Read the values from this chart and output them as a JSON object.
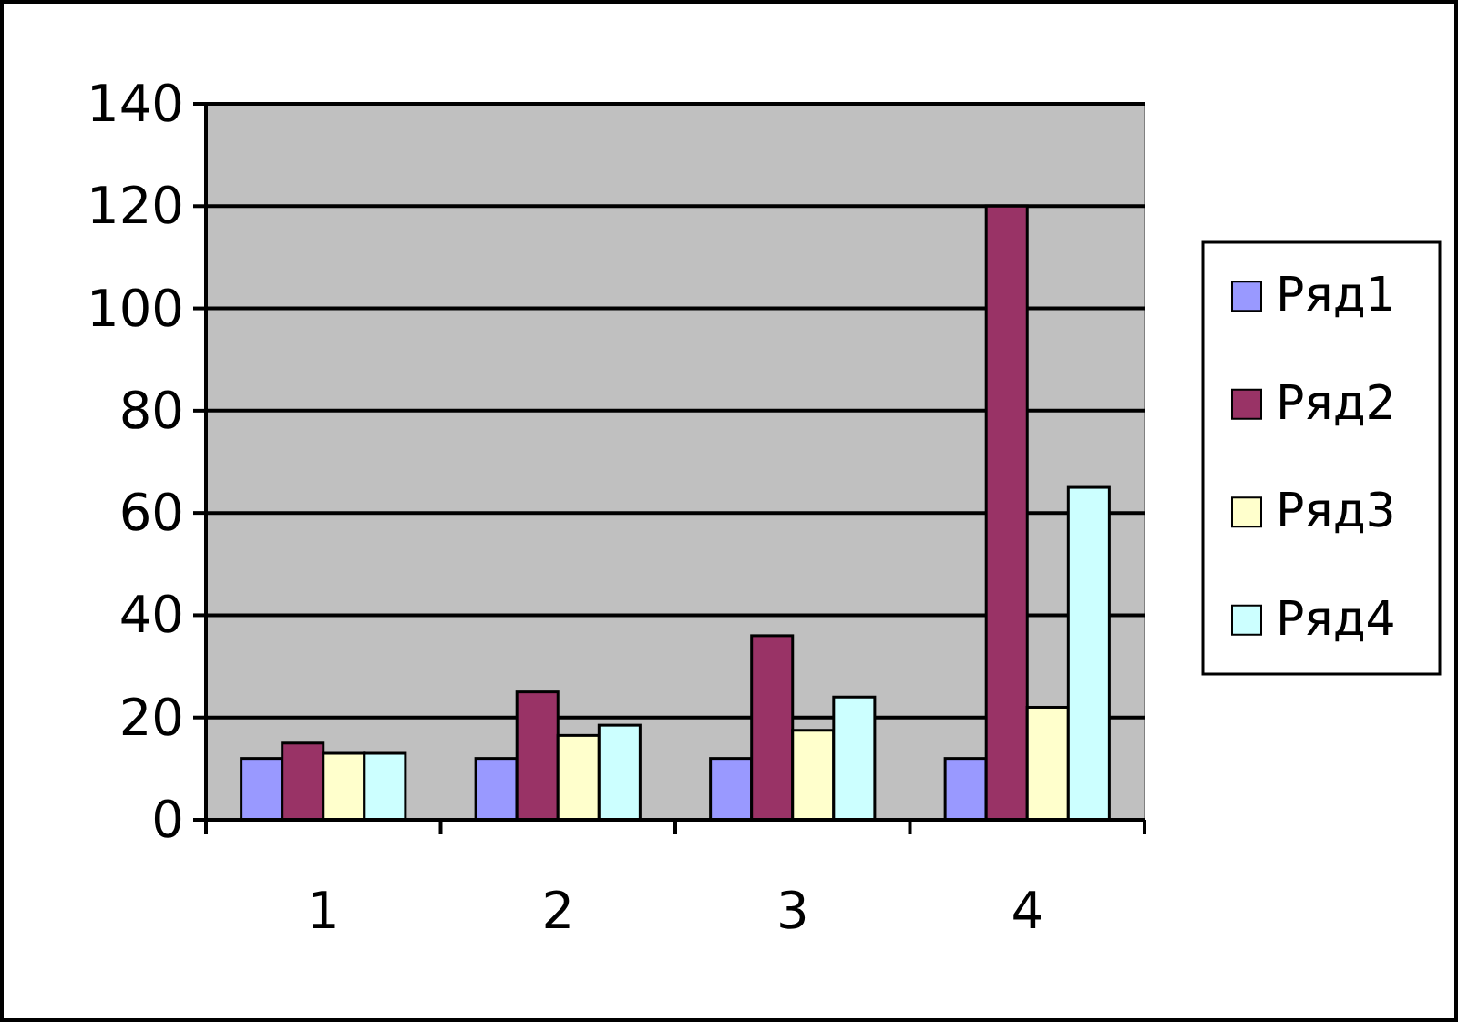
{
  "chart_data": {
    "type": "bar",
    "categories": [
      "1",
      "2",
      "3",
      "4"
    ],
    "series": [
      {
        "name": "Ряд1",
        "color": "#9999ff",
        "values": [
          12,
          12,
          12,
          12
        ]
      },
      {
        "name": "Ряд2",
        "color": "#993366",
        "values": [
          15,
          25,
          36,
          120
        ]
      },
      {
        "name": "Ряд3",
        "color": "#ffffcc",
        "values": [
          13,
          16.5,
          17.5,
          22
        ]
      },
      {
        "name": "Ряд4",
        "color": "#ccffff",
        "values": [
          13,
          18.5,
          24,
          65
        ]
      }
    ],
    "ylim": [
      0,
      140
    ],
    "yticks": [
      0,
      20,
      40,
      60,
      80,
      100,
      120,
      140
    ],
    "grid": "y",
    "legend": "right"
  }
}
